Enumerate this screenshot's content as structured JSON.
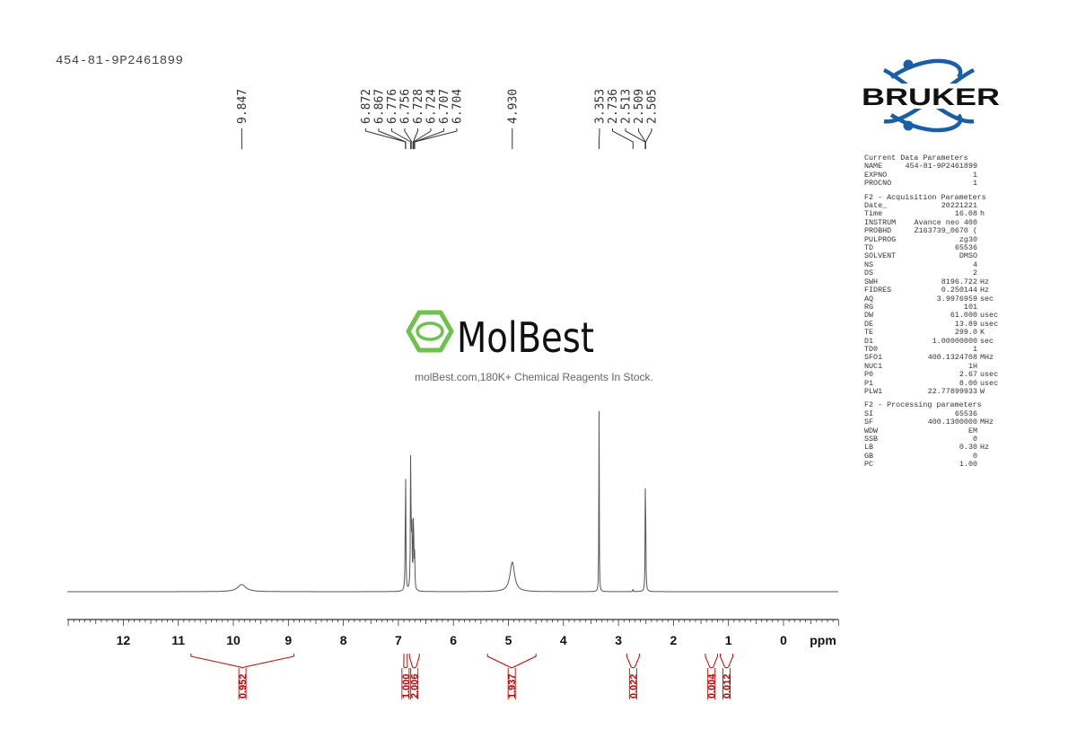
{
  "sample_title": "454-81-9P2461899",
  "logo": {
    "text": "BRUKER"
  },
  "watermark": {
    "brand": "MolBest",
    "tagline": "molBest.com,180K+ Chemical Reagents In Stock."
  },
  "colors": {
    "spectrum": "#555555",
    "integral": "#cc0000",
    "logo_blue": "#1a5ea8",
    "watermark_green": "#6cc24a",
    "text": "#333333"
  },
  "parameters": {
    "current_title": "Current Data Parameters",
    "current": [
      {
        "label": "NAME",
        "value": "454-81-9P2461899",
        "unit": ""
      },
      {
        "label": "EXPNO",
        "value": "1",
        "unit": ""
      },
      {
        "label": "PROCNO",
        "value": "1",
        "unit": ""
      }
    ],
    "acq_title": "F2 - Acquisition Parameters",
    "acquisition": [
      {
        "label": "Date_",
        "value": "20221221",
        "unit": ""
      },
      {
        "label": "Time",
        "value": "16.08",
        "unit": "h"
      },
      {
        "label": "INSTRUM",
        "value": "Avance neo 400",
        "unit": ""
      },
      {
        "label": "PROBHD",
        "value": "Z163739_0670 (",
        "unit": ""
      },
      {
        "label": "PULPROG",
        "value": "zg30",
        "unit": ""
      },
      {
        "label": "TD",
        "value": "65536",
        "unit": ""
      },
      {
        "label": "SOLVENT",
        "value": "DMSO",
        "unit": ""
      },
      {
        "label": "NS",
        "value": "4",
        "unit": ""
      },
      {
        "label": "DS",
        "value": "2",
        "unit": ""
      },
      {
        "label": "SWH",
        "value": "8196.722",
        "unit": "Hz"
      },
      {
        "label": "FIDRES",
        "value": "0.250144",
        "unit": "Hz"
      },
      {
        "label": "AQ",
        "value": "3.9976959",
        "unit": "sec"
      },
      {
        "label": "RG",
        "value": "101",
        "unit": ""
      },
      {
        "label": "DW",
        "value": "61.000",
        "unit": "usec"
      },
      {
        "label": "DE",
        "value": "13.89",
        "unit": "usec"
      },
      {
        "label": "TE",
        "value": "299.0",
        "unit": "K"
      },
      {
        "label": "D1",
        "value": "1.00000000",
        "unit": "sec"
      },
      {
        "label": "TD0",
        "value": "1",
        "unit": ""
      },
      {
        "label": "SFO1",
        "value": "400.1324708",
        "unit": "MHz"
      },
      {
        "label": "NUC1",
        "value": "1H",
        "unit": ""
      },
      {
        "label": "P0",
        "value": "2.67",
        "unit": "usec"
      },
      {
        "label": "P1",
        "value": "8.00",
        "unit": "usec"
      },
      {
        "label": "PLW1",
        "value": "22.77899933",
        "unit": "W"
      }
    ],
    "proc_title": "F2 - Processing parameters",
    "processing": [
      {
        "label": "SI",
        "value": "65536",
        "unit": ""
      },
      {
        "label": "SF",
        "value": "400.1300000",
        "unit": "MHz"
      },
      {
        "label": "WDW",
        "value": "EM",
        "unit": ""
      },
      {
        "label": "SSB",
        "value": "0",
        "unit": ""
      },
      {
        "label": "LB",
        "value": "0.30",
        "unit": "Hz"
      },
      {
        "label": "GB",
        "value": "0",
        "unit": ""
      },
      {
        "label": "PC",
        "value": "1.00",
        "unit": ""
      }
    ]
  },
  "chart_data": {
    "type": "line",
    "title": "",
    "xlabel": "ppm",
    "xlim": [
      14,
      0
    ],
    "x_reversed": true,
    "x_ticks": [
      12,
      11,
      10,
      9,
      8,
      7,
      6,
      5,
      4,
      3,
      2,
      1,
      0
    ],
    "peak_labels": [
      {
        "group": [
          9.847
        ],
        "labels": [
          "9.847"
        ]
      },
      {
        "group": [
          6.872,
          6.867,
          6.776,
          6.756,
          6.728,
          6.724,
          6.707,
          6.704
        ],
        "labels": [
          "6.872",
          "6.867",
          "6.776",
          "6.756",
          "6.728",
          "6.724",
          "6.707",
          "6.704"
        ]
      },
      {
        "group": [
          4.93
        ],
        "labels": [
          "4.930"
        ]
      },
      {
        "group": [
          3.353,
          2.736,
          2.513,
          2.509,
          2.505
        ],
        "labels": [
          "3.353",
          "2.736",
          "2.513",
          "2.509",
          "2.505"
        ]
      }
    ],
    "peaks": [
      {
        "ppm": 9.847,
        "height": 0.048,
        "width": 0.09
      },
      {
        "ppm": 6.87,
        "height": 0.85,
        "width": 0.006
      },
      {
        "ppm": 6.776,
        "height": 0.99,
        "width": 0.006
      },
      {
        "ppm": 6.756,
        "height": 0.45,
        "width": 0.006
      },
      {
        "ppm": 6.726,
        "height": 0.57,
        "width": 0.006
      },
      {
        "ppm": 6.706,
        "height": 0.24,
        "width": 0.006
      },
      {
        "ppm": 4.93,
        "height": 0.2,
        "width": 0.05
      },
      {
        "ppm": 3.353,
        "height": 1.25,
        "width": 0.004
      },
      {
        "ppm": 2.736,
        "height": 0.02,
        "width": 0.005
      },
      {
        "ppm": 2.509,
        "height": 0.99,
        "width": 0.005
      }
    ],
    "integrals": [
      {
        "from": 10.77,
        "to": 8.9,
        "value": "0.952"
      },
      {
        "from": 6.9,
        "to": 6.84,
        "value": "1.000"
      },
      {
        "from": 6.8,
        "to": 6.62,
        "value": "2.006"
      },
      {
        "from": 5.38,
        "to": 4.5,
        "value": "1.937"
      },
      {
        "from": 2.85,
        "to": 2.62,
        "value": "0.022"
      },
      {
        "from": 1.42,
        "to": 1.2,
        "value": "0.004"
      },
      {
        "from": 1.15,
        "to": 0.92,
        "value": "0.012"
      }
    ]
  }
}
